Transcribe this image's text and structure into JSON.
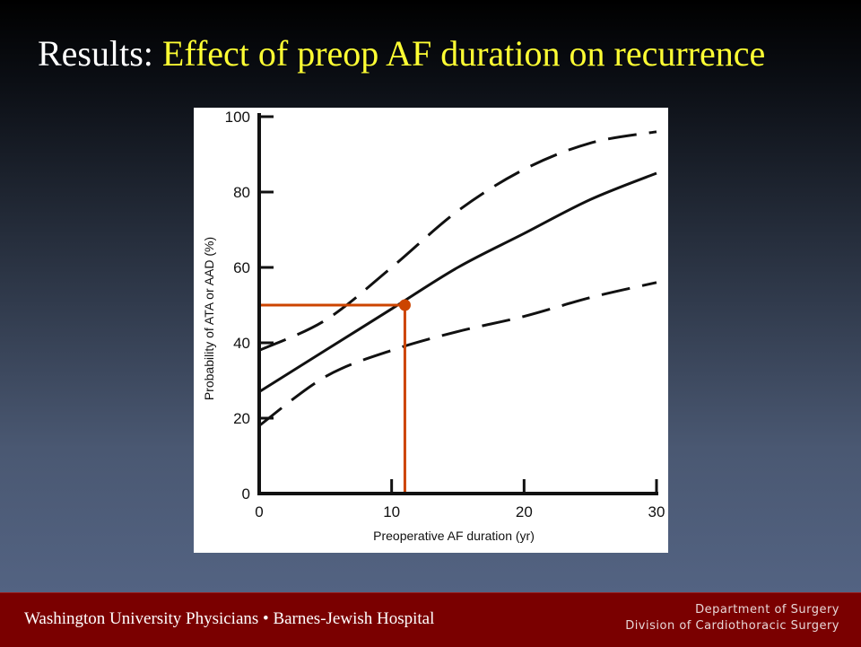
{
  "slide": {
    "title_prefix": "Results:",
    "title_main": "Effect of preop AF duration on recurrence"
  },
  "footer": {
    "left_text": "Washington University Physicians • Barnes-Jewish Hospital",
    "right_line1": "Department of Surgery",
    "right_line2": "Division of Cardiothoracic Surgery",
    "background_color": "#7a0000"
  },
  "chart_data": {
    "type": "line",
    "title": "",
    "xlabel": "Preoperative AF duration (yr)",
    "ylabel": "Probability of ATA or AAD (%)",
    "xlim": [
      0,
      30
    ],
    "ylim": [
      0,
      100
    ],
    "x_ticks": [
      "0",
      "10",
      "20",
      "30"
    ],
    "y_ticks": [
      "0",
      "20",
      "40",
      "60",
      "80",
      "100"
    ],
    "grid": false,
    "series": [
      {
        "style": "solid",
        "color": "#111111",
        "x": [
          0,
          5,
          10,
          15,
          20,
          25,
          30
        ],
        "y": [
          27,
          38,
          49,
          60,
          69,
          78,
          85
        ]
      },
      {
        "style": "dashed",
        "color": "#111111",
        "x": [
          0,
          5,
          10,
          15,
          20,
          25,
          30
        ],
        "y": [
          38,
          46,
          60,
          75,
          86,
          93,
          96
        ]
      },
      {
        "style": "dashed",
        "color": "#111111",
        "x": [
          0,
          5,
          10,
          15,
          20,
          25,
          30
        ],
        "y": [
          18,
          31,
          38,
          43,
          47,
          52,
          56
        ]
      }
    ],
    "annotation": {
      "color": "#cc4400",
      "point": {
        "x": 11,
        "y": 50
      }
    }
  }
}
